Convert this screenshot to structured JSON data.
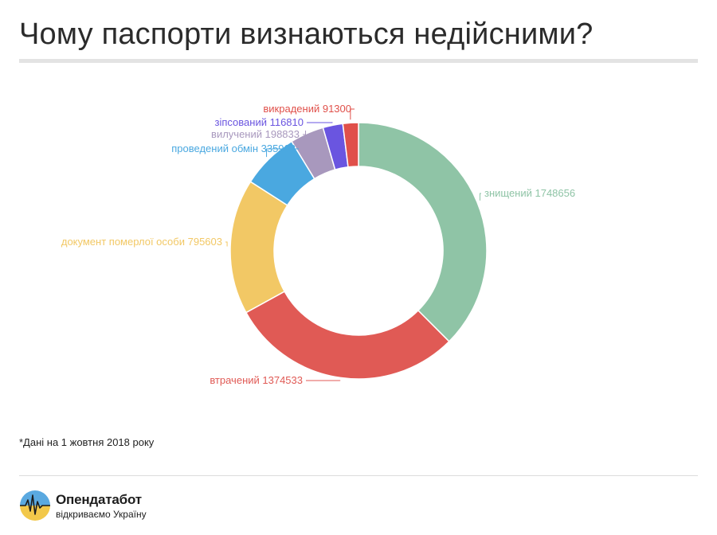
{
  "title": "Чому паспорти визнаються недійсними?",
  "footnote": "*Дані на 1 жовтня 2018 року",
  "brand": {
    "name": "Опендатабот",
    "tagline": "відкриваємо Україну",
    "logo_colors": {
      "sky": "#5aa9e0",
      "sun": "#f2c84a",
      "line": "#1d1d1d"
    }
  },
  "chart_data": {
    "type": "pie",
    "donut": true,
    "title": "Чому паспорти визнаються недійсними?",
    "slices": [
      {
        "label": "знищений",
        "value": 1748656,
        "color": "#8fc4a6"
      },
      {
        "label": "втрачений",
        "value": 1374533,
        "color": "#e05a55"
      },
      {
        "label": "документ померлої особи",
        "value": 795603,
        "color": "#f2c865"
      },
      {
        "label": "проведений обмін",
        "value": 335963,
        "color": "#4aa8e0"
      },
      {
        "label": "вилучений",
        "value": 198833,
        "color": "#a898bd"
      },
      {
        "label": "зіпсований",
        "value": 116810,
        "color": "#6a55e0"
      },
      {
        "label": "викрадений",
        "value": 91300,
        "color": "#e0504a"
      }
    ]
  }
}
